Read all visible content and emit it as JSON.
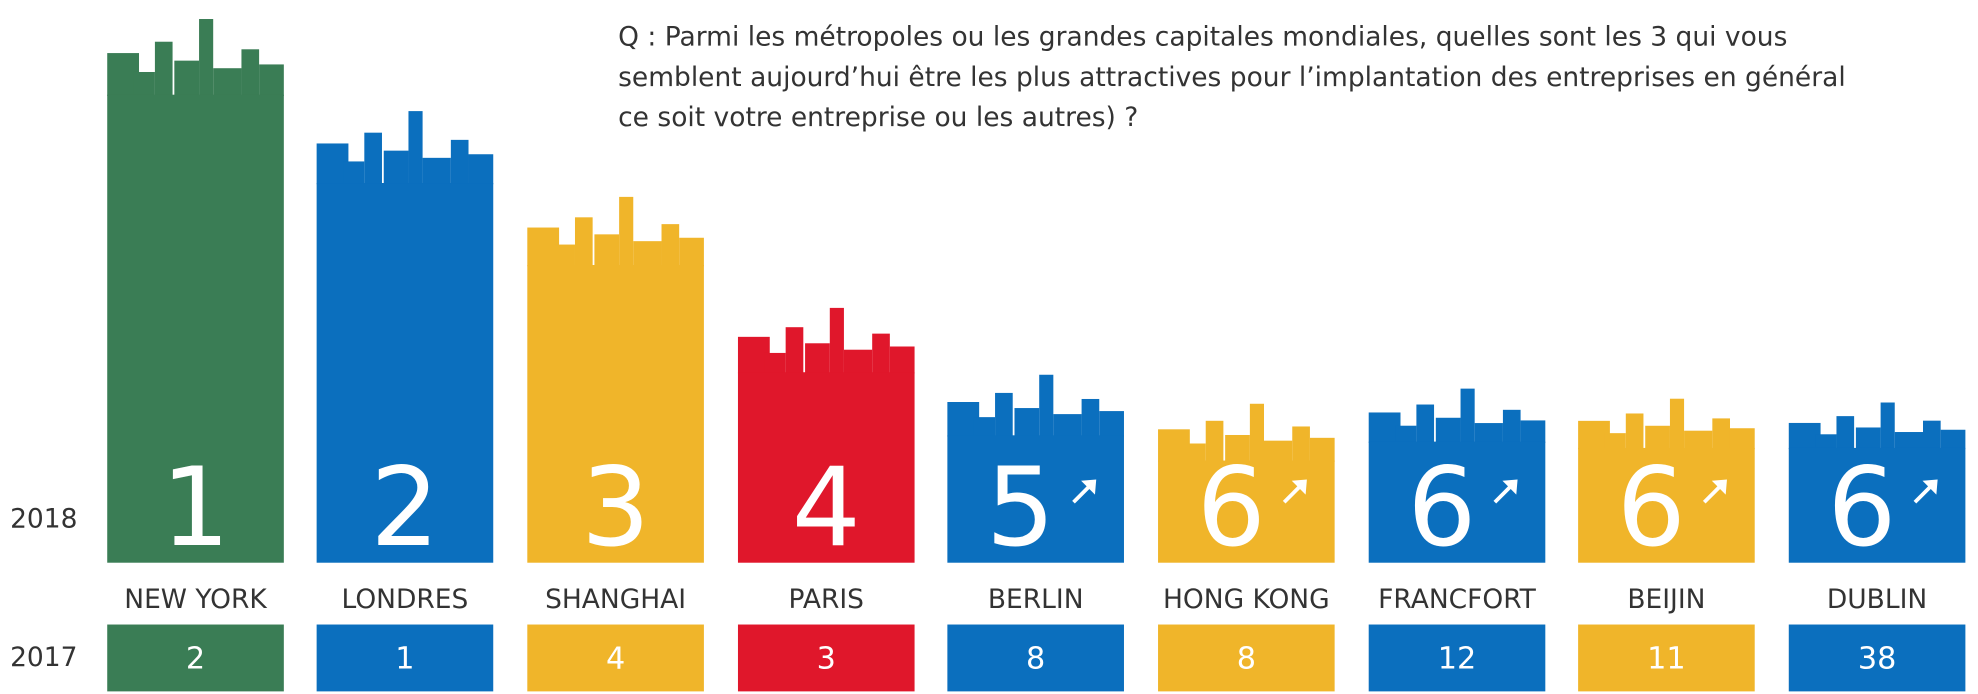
{
  "question": [
    "Q : Parmi les métropoles ou les grandes capitales mondiales, quelles sont les 3 qui vous",
    "semblent aujourd’hui être les plus attractives pour l’implantation des entreprises en général",
    "ce soit votre entreprise ou les autres) ?"
  ],
  "year_2018": "2018",
  "year_2017": "2017",
  "cities": [
    {
      "name": "NEW YORK",
      "rank_2018": "1",
      "rank_2017": "2",
      "color": "#3a7d55",
      "arrow": false
    },
    {
      "name": "LONDRES",
      "rank_2018": "2",
      "rank_2017": "1",
      "color": "#0b6fbe",
      "arrow": false
    },
    {
      "name": "SHANGHAI",
      "rank_2018": "3",
      "rank_2017": "4",
      "color": "#f0b52a",
      "arrow": false
    },
    {
      "name": "PARIS",
      "rank_2018": "4",
      "rank_2017": "3",
      "color": "#e0172b",
      "arrow": false
    },
    {
      "name": "BERLIN",
      "rank_2018": "5",
      "rank_2017": "8",
      "color": "#0b6fbe",
      "arrow": true
    },
    {
      "name": "HONG KONG",
      "rank_2018": "6",
      "rank_2017": "8",
      "color": "#f0b52a",
      "arrow": true
    },
    {
      "name": "FRANCFORT",
      "rank_2018": "6",
      "rank_2017": "12",
      "color": "#0b6fbe",
      "arrow": true
    },
    {
      "name": "BEIJIN",
      "rank_2018": "6",
      "rank_2017": "11",
      "color": "#f0b52a",
      "arrow": true
    },
    {
      "name": "DUBLIN",
      "rank_2018": "6",
      "rank_2017": "38",
      "color": "#0b6fbe",
      "arrow": true
    }
  ]
}
